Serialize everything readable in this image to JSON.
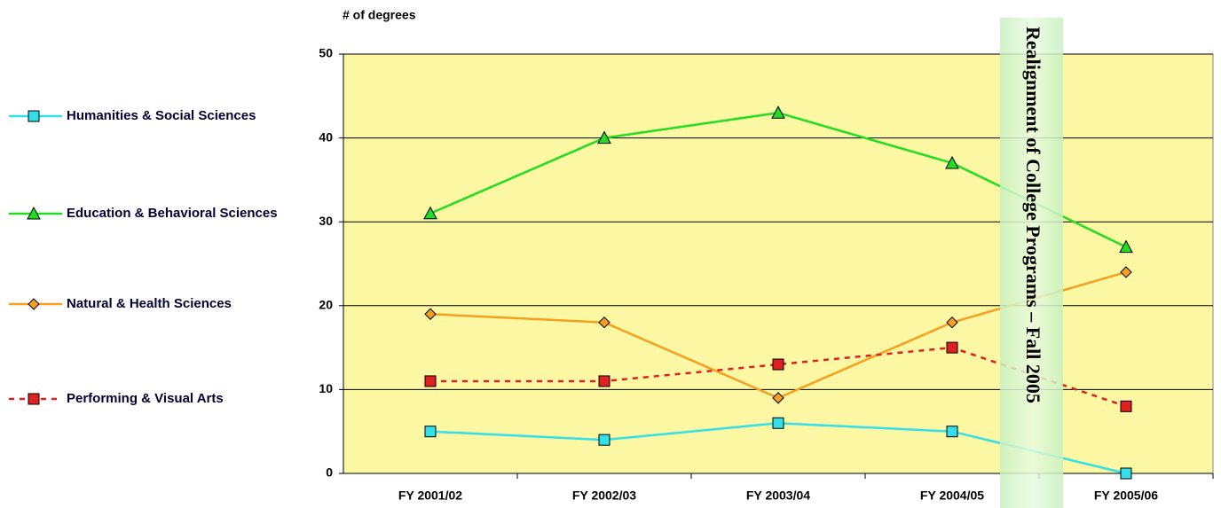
{
  "chart_data": {
    "type": "line",
    "y_label": "# of degrees",
    "categories": [
      "FY 2001/02",
      "FY 2002/03",
      "FY 2003/04",
      "FY 2004/05",
      "FY 2005/06"
    ],
    "series": [
      {
        "name": "Humanities & Social Sciences",
        "color": "#33e0e8",
        "marker": "square",
        "dashed": false,
        "values": [
          5,
          4,
          6,
          5,
          0
        ]
      },
      {
        "name": "Education & Behavioral Sciences",
        "color": "#22dd22",
        "marker": "triangle",
        "dashed": false,
        "values": [
          31,
          40,
          43,
          37,
          27
        ]
      },
      {
        "name": "Natural & Health Sciences",
        "color": "#f5a020",
        "marker": "diamond",
        "dashed": false,
        "values": [
          19,
          18,
          9,
          18,
          24
        ]
      },
      {
        "name": "Performing & Visual Arts",
        "color": "#e02020",
        "marker": "square",
        "dashed": true,
        "values": [
          11,
          11,
          13,
          15,
          8
        ]
      }
    ],
    "ylim": [
      0,
      50
    ],
    "yticks": [
      0,
      10,
      20,
      30,
      40,
      50
    ],
    "grid": true,
    "annotation": "Realignment of College Programs – Fall 2005"
  }
}
